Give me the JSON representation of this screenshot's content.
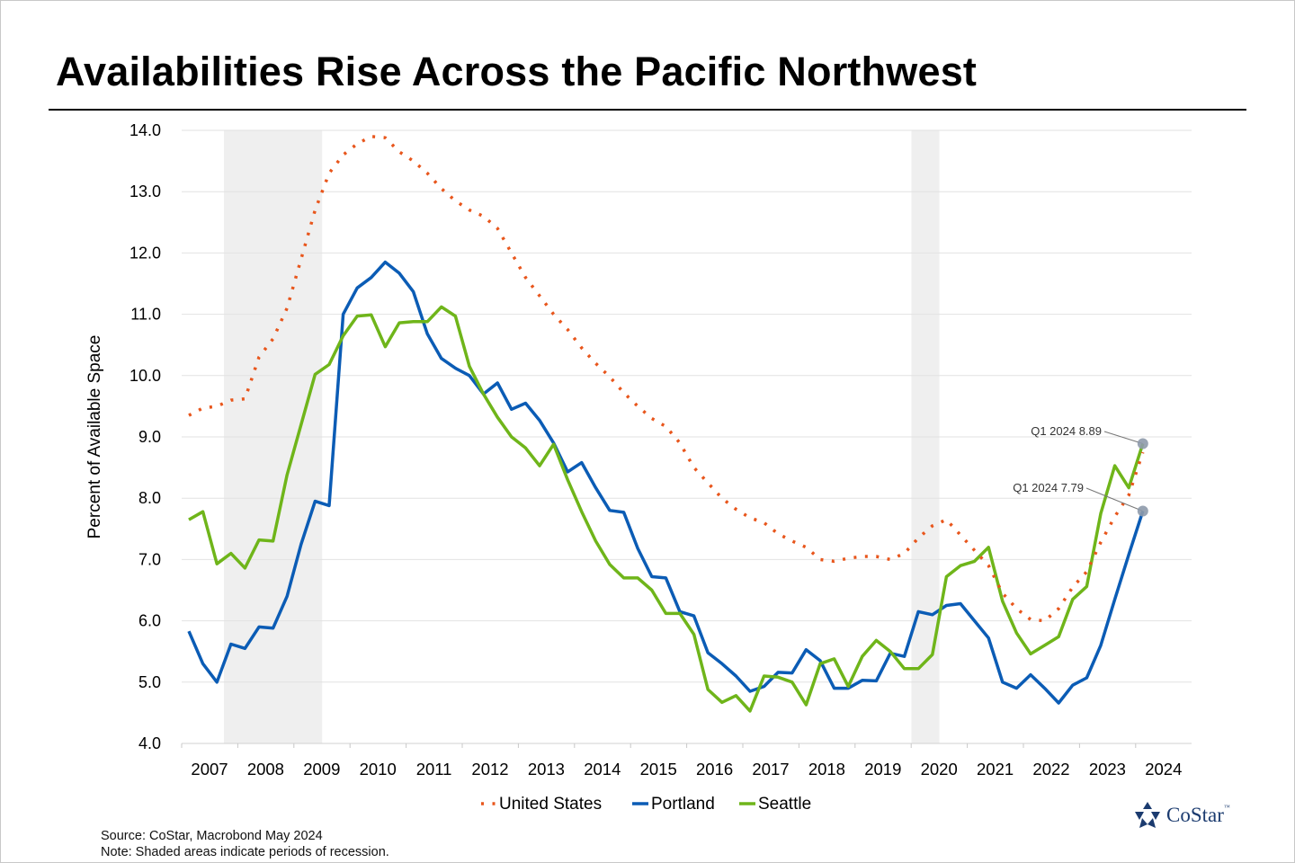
{
  "title": "Availabilities Rise Across the Pacific Northwest",
  "source": "Source: CoStar, Macrobond May 2024",
  "note": "Note: Shaded areas indicate periods of recession.",
  "logo": {
    "text": "CoStar",
    "tm": "™"
  },
  "colors": {
    "united_states": "#e8561c",
    "portland": "#0b5cb5",
    "seattle": "#6fb51a",
    "recession": "#efefef",
    "marker": "#8e9aab"
  },
  "chart_data": {
    "type": "line",
    "title": "Availabilities Rise Across the Pacific Northwest",
    "ylabel": "Percent of Available Space",
    "xlabel": "",
    "ylim": [
      4.0,
      14.0
    ],
    "yticks": [
      "4.0",
      "5.0",
      "6.0",
      "7.0",
      "8.0",
      "9.0",
      "10.0",
      "11.0",
      "12.0",
      "13.0",
      "14.0"
    ],
    "xticks": [
      "2007",
      "2008",
      "2009",
      "2010",
      "2011",
      "2012",
      "2013",
      "2014",
      "2015",
      "2016",
      "2017",
      "2018",
      "2019",
      "2020",
      "2021",
      "2022",
      "2023",
      "2024"
    ],
    "x_start": "2007 Q1",
    "x_end": "2024 Q1",
    "frequency": "quarterly",
    "grid": true,
    "legend": "bottom-center",
    "recessions": [
      [
        "2007 Q4",
        "2009 Q2"
      ],
      [
        "2020 Q1",
        "2020 Q2"
      ]
    ],
    "series": [
      {
        "name": "United States",
        "style": "dotted",
        "values": [
          9.35,
          9.47,
          9.5,
          9.6,
          9.62,
          10.3,
          10.6,
          11.1,
          11.9,
          12.7,
          13.3,
          13.6,
          13.78,
          13.9,
          13.88,
          13.65,
          13.5,
          13.3,
          13.05,
          12.85,
          12.7,
          12.6,
          12.4,
          12.0,
          11.6,
          11.3,
          11.0,
          10.75,
          10.45,
          10.2,
          9.98,
          9.72,
          9.5,
          9.3,
          9.17,
          8.9,
          8.5,
          8.25,
          8.0,
          7.82,
          7.68,
          7.6,
          7.42,
          7.3,
          7.2,
          7.0,
          6.97,
          7.02,
          7.05,
          7.05,
          7.0,
          7.1,
          7.35,
          7.55,
          7.65,
          7.4,
          7.15,
          6.9,
          6.45,
          6.2,
          6.02,
          6.0,
          6.2,
          6.55,
          6.8,
          7.28,
          7.7,
          8.05,
          8.75
        ]
      },
      {
        "name": "Portland",
        "style": "solid",
        "values": [
          5.83,
          5.3,
          5.0,
          5.62,
          5.55,
          5.9,
          5.88,
          6.4,
          7.25,
          7.95,
          7.88,
          11.0,
          11.43,
          11.6,
          11.85,
          11.67,
          11.37,
          10.68,
          10.28,
          10.12,
          10.0,
          9.7,
          9.88,
          9.45,
          9.55,
          9.27,
          8.9,
          8.43,
          8.58,
          8.17,
          7.8,
          7.77,
          7.18,
          6.72,
          6.7,
          6.15,
          6.08,
          5.48,
          5.3,
          5.1,
          4.85,
          4.93,
          5.16,
          5.15,
          5.53,
          5.35,
          4.9,
          4.9,
          5.03,
          5.02,
          5.47,
          5.42,
          6.15,
          6.1,
          6.25,
          6.28,
          6.0,
          5.72,
          5.0,
          4.9,
          5.12,
          4.9,
          4.66,
          4.95,
          5.07,
          5.6,
          6.35,
          7.08,
          7.79
        ]
      },
      {
        "name": "Seattle",
        "style": "solid",
        "values": [
          7.65,
          7.78,
          6.93,
          7.1,
          6.86,
          7.32,
          7.3,
          8.38,
          9.2,
          10.02,
          10.18,
          10.65,
          10.97,
          10.99,
          10.47,
          10.86,
          10.88,
          10.88,
          11.12,
          10.97,
          10.15,
          9.7,
          9.32,
          9.0,
          8.82,
          8.53,
          8.88,
          8.3,
          7.78,
          7.3,
          6.92,
          6.7,
          6.7,
          6.5,
          6.12,
          6.12,
          5.78,
          4.88,
          4.67,
          4.78,
          4.53,
          5.1,
          5.08,
          5.0,
          4.63,
          5.3,
          5.38,
          4.93,
          5.42,
          5.68,
          5.5,
          5.22,
          5.22,
          5.45,
          6.72,
          6.9,
          6.97,
          7.2,
          6.32,
          5.8,
          5.46,
          5.6,
          5.74,
          6.35,
          6.56,
          7.75,
          8.53,
          8.17,
          8.89
        ]
      }
    ],
    "annotations": [
      {
        "series": "Seattle",
        "label": "Q1 2024 8.89",
        "value": 8.89
      },
      {
        "series": "Portland",
        "label": "Q1 2024 7.79",
        "value": 7.79
      }
    ]
  }
}
